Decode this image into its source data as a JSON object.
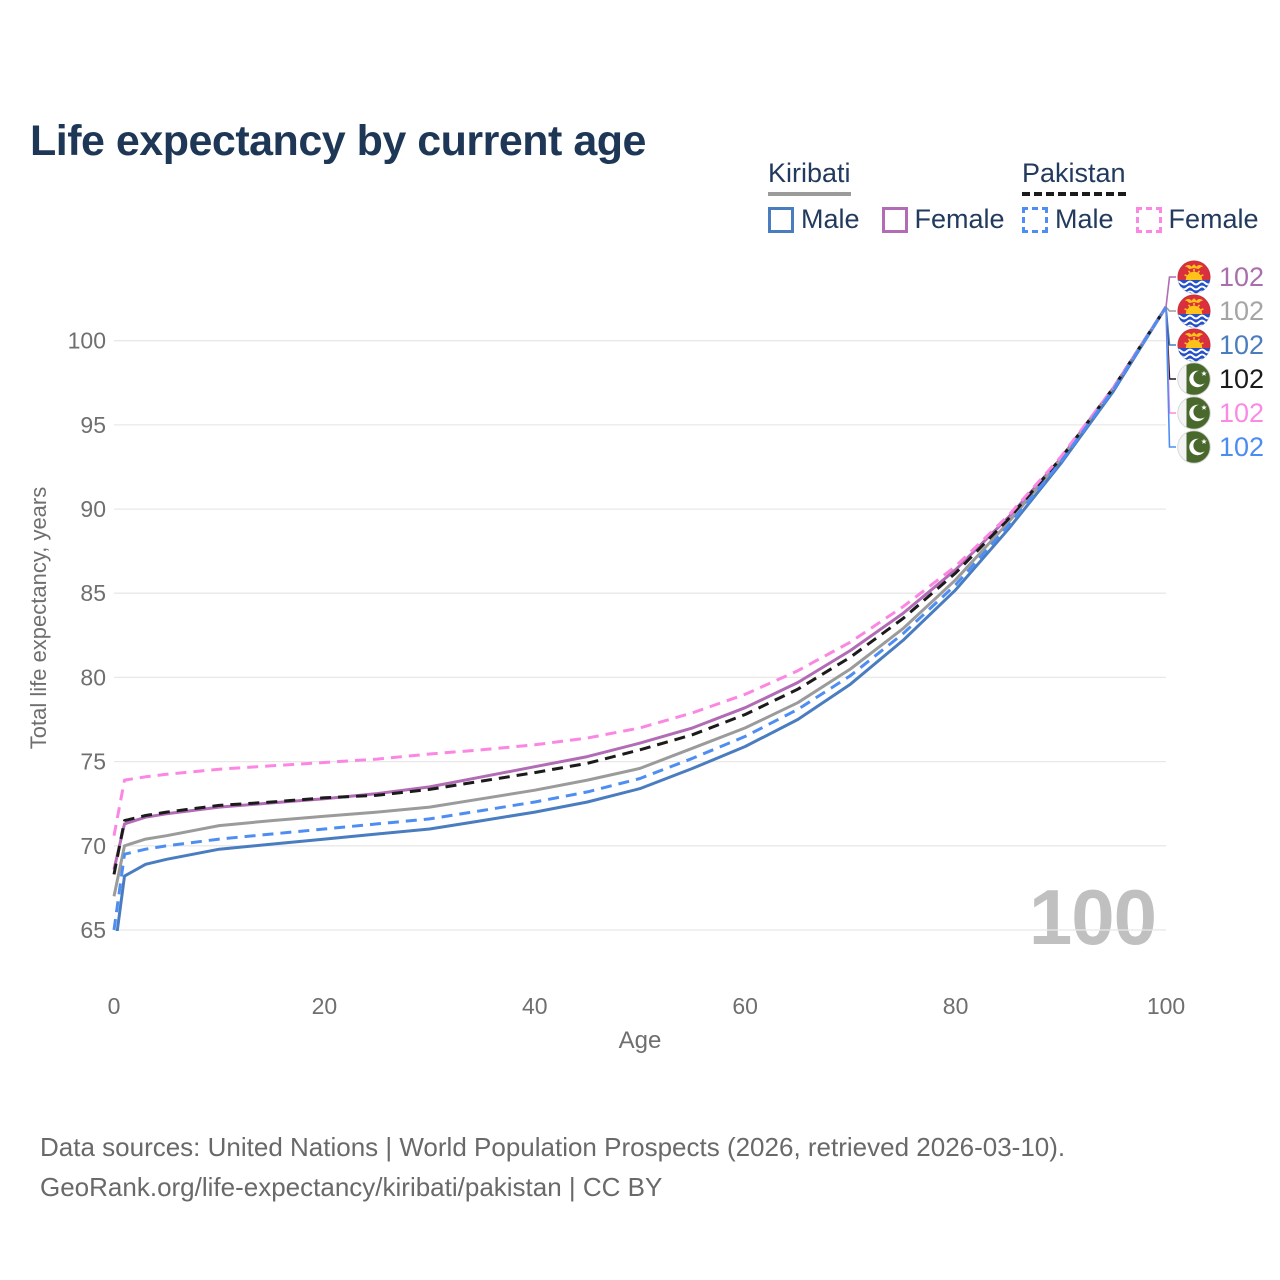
{
  "title": "Life expectancy by current age",
  "watermark": "100",
  "legend": {
    "groups": [
      {
        "name": "Kiribati",
        "line_style": "solid",
        "line_color": "#9b9b9b",
        "items": [
          {
            "label": "Male",
            "color": "#4a7dc0",
            "style": "solid"
          },
          {
            "label": "Female",
            "color": "#b26cb5",
            "style": "solid"
          }
        ]
      },
      {
        "name": "Pakistan",
        "line_style": "dashed",
        "line_color": "#1b1b1b",
        "items": [
          {
            "label": "Male",
            "color": "#4e8ef2",
            "style": "dashed"
          },
          {
            "label": "Female",
            "color": "#fb87e2",
            "style": "dashed"
          }
        ]
      }
    ]
  },
  "footer": {
    "line1": "Data sources: United Nations | World Population Prospects (2026, retrieved 2026-03-10).",
    "line2": "GeoRank.org/life-expectancy/kiribati/pakistan | CC BY"
  },
  "theme": {
    "title_color": "#1e3756",
    "axis_color": "#6f6f6f",
    "grid_color": "#e8e8e8",
    "watermark_color": "#c0c0c0",
    "footer_color": "#696969"
  },
  "chart_data": {
    "type": "line",
    "title": "Life expectancy by current age",
    "xlabel": "Age",
    "ylabel": "Total life expectancy, years",
    "xlim": [
      0,
      100
    ],
    "ylim": [
      65,
      102
    ],
    "xticks": [
      0,
      20,
      40,
      60,
      80,
      100
    ],
    "yticks": [
      65,
      70,
      75,
      80,
      85,
      90,
      95,
      100
    ],
    "grid": "horizontal-only",
    "legend_position": "top-right",
    "x": [
      0,
      1,
      3,
      5,
      10,
      15,
      20,
      25,
      30,
      35,
      40,
      45,
      50,
      55,
      60,
      65,
      70,
      75,
      80,
      85,
      90,
      95,
      100
    ],
    "series": [
      {
        "name": "Kiribati Female",
        "country": "Kiribati",
        "sex": "Female",
        "flag": "kiribati",
        "color": "#b26cb5",
        "dash": "solid",
        "end_label": "102",
        "label_color": "#a96fad",
        "values": [
          68.6,
          71.3,
          71.7,
          71.9,
          72.3,
          72.55,
          72.8,
          73.1,
          73.5,
          74.1,
          74.7,
          75.3,
          76.1,
          77.0,
          78.2,
          79.7,
          81.6,
          83.8,
          86.4,
          89.5,
          93.0,
          97.2,
          102
        ]
      },
      {
        "name": "Kiribati Both sexes",
        "country": "Kiribati",
        "sex": "Both",
        "flag": "kiribati",
        "color": "#9b9b9b",
        "dash": "solid",
        "end_label": "102",
        "label_color": "#a5a5a5",
        "values": [
          67.0,
          70.0,
          70.4,
          70.6,
          71.2,
          71.5,
          71.75,
          72.0,
          72.3,
          72.8,
          73.3,
          73.9,
          74.6,
          75.8,
          77.0,
          78.5,
          80.5,
          82.9,
          85.8,
          89.2,
          92.9,
          97.1,
          102
        ]
      },
      {
        "name": "Kiribati Male",
        "country": "Kiribati",
        "sex": "Male",
        "flag": "kiribati",
        "color": "#4a7dc0",
        "dash": "solid",
        "end_label": "102",
        "label_color": "#4a7dc0",
        "values": [
          63.5,
          68.2,
          68.9,
          69.2,
          69.8,
          70.1,
          70.4,
          70.7,
          71.0,
          71.5,
          72.0,
          72.6,
          73.4,
          74.6,
          75.9,
          77.5,
          79.6,
          82.2,
          85.2,
          88.8,
          92.7,
          97.0,
          102
        ]
      },
      {
        "name": "Pakistan Both sexes",
        "country": "Pakistan",
        "sex": "Both",
        "flag": "pakistan",
        "color": "#1b1b1b",
        "dash": "dashed",
        "end_label": "102",
        "label_color": "#1b1b1b",
        "values": [
          68.3,
          71.5,
          71.8,
          72.0,
          72.4,
          72.6,
          72.85,
          73.0,
          73.35,
          73.85,
          74.35,
          74.9,
          75.7,
          76.6,
          77.8,
          79.3,
          81.2,
          83.5,
          86.2,
          89.4,
          93.0,
          97.2,
          102
        ]
      },
      {
        "name": "Pakistan Female",
        "country": "Pakistan",
        "sex": "Female",
        "flag": "pakistan",
        "color": "#fb87e2",
        "dash": "dashed",
        "end_label": "102",
        "label_color": "#f98ae6",
        "values": [
          70.6,
          73.9,
          74.1,
          74.25,
          74.55,
          74.75,
          74.95,
          75.15,
          75.45,
          75.7,
          76.0,
          76.4,
          77.0,
          77.9,
          79.0,
          80.4,
          82.1,
          84.2,
          86.6,
          89.6,
          93.1,
          97.2,
          102
        ]
      },
      {
        "name": "Pakistan Male",
        "country": "Pakistan",
        "sex": "Male",
        "flag": "pakistan",
        "color": "#4e8ef2",
        "dash": "dashed",
        "end_label": "102",
        "label_color": "#4b8cf0",
        "values": [
          65.0,
          69.5,
          69.8,
          70.0,
          70.4,
          70.7,
          71.0,
          71.3,
          71.6,
          72.1,
          72.6,
          73.2,
          74.0,
          75.2,
          76.5,
          78.1,
          80.1,
          82.6,
          85.5,
          89.0,
          92.8,
          97.1,
          102
        ]
      }
    ]
  }
}
